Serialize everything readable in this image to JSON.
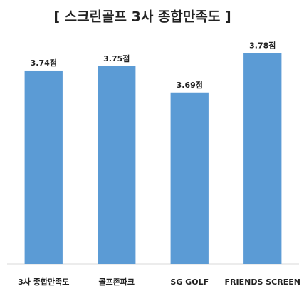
{
  "chart_data": {
    "type": "bar",
    "title": "[ 스크린골프 3사 종합만족도 ]",
    "categories": [
      "3사 종합만족도",
      "골프존파크",
      "SG GOLF",
      "FRIENDS SCREEN"
    ],
    "values": [
      3.74,
      3.75,
      3.69,
      3.78
    ],
    "value_labels": [
      "3.74점",
      "3.75점",
      "3.69점",
      "3.78점"
    ],
    "color": "#5b9bd5",
    "ylim": [
      3.3,
      3.8
    ]
  }
}
